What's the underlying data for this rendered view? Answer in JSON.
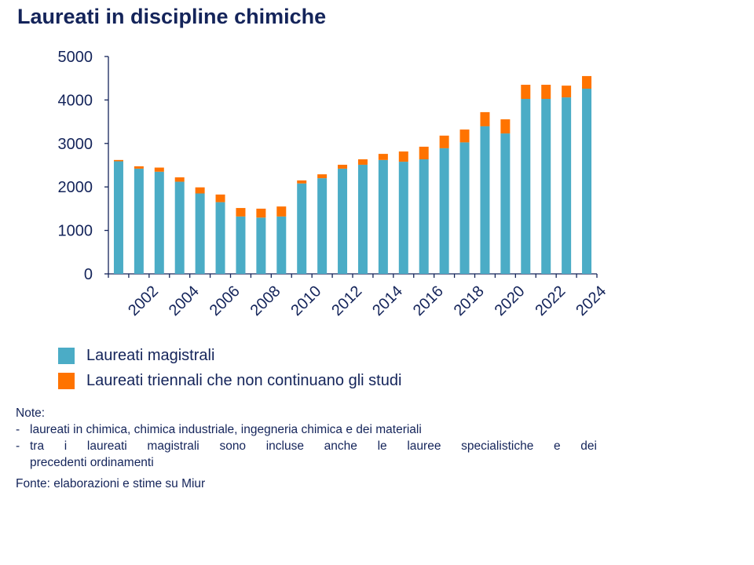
{
  "title": "Laureati in discipline chimiche",
  "chart_data": {
    "type": "bar",
    "stacked": true,
    "title": "Laureati in discipline chimiche",
    "categories": [
      2001,
      2002,
      2003,
      2004,
      2005,
      2006,
      2007,
      2008,
      2009,
      2010,
      2011,
      2012,
      2013,
      2014,
      2015,
      2016,
      2017,
      2018,
      2019,
      2020,
      2021,
      2022,
      2023,
      2024
    ],
    "tick_labels": [
      "2002",
      "2004",
      "2006",
      "2008",
      "2010",
      "2012",
      "2014",
      "2016",
      "2018",
      "2020",
      "2022",
      "2024"
    ],
    "series": [
      {
        "name": "Laureati magistrali",
        "color": "#4BACC6",
        "values": [
          2590,
          2420,
          2350,
          2120,
          1850,
          1650,
          1320,
          1295,
          1320,
          2080,
          2200,
          2420,
          2510,
          2620,
          2580,
          2635,
          2890,
          3025,
          3395,
          3230,
          4025,
          4025,
          4060,
          4260
        ]
      },
      {
        "name": "Laureati triennali che non continuano gli studi",
        "color": "#FF7300",
        "values": [
          30,
          55,
          95,
          100,
          140,
          175,
          195,
          205,
          230,
          70,
          90,
          90,
          125,
          140,
          235,
          290,
          290,
          295,
          325,
          325,
          325,
          325,
          270,
          290
        ]
      }
    ],
    "ylim": [
      0,
      5000
    ],
    "yticks": [
      "0",
      "1000",
      "2000",
      "3000",
      "4000",
      "5000"
    ],
    "xlabel": "",
    "ylabel": "",
    "grid": false,
    "legend_position": "bottom-left"
  },
  "notes": {
    "heading": "Note:",
    "items": [
      "laureati in chimica, chimica industriale, ingegneria chimica e dei materiali",
      "tra i laureati magistrali sono incluse anche le lauree specialistiche e dei",
      "precedenti ordinamenti"
    ],
    "dash": "-",
    "source": "Fonte: elaborazioni e stime su Miur"
  }
}
